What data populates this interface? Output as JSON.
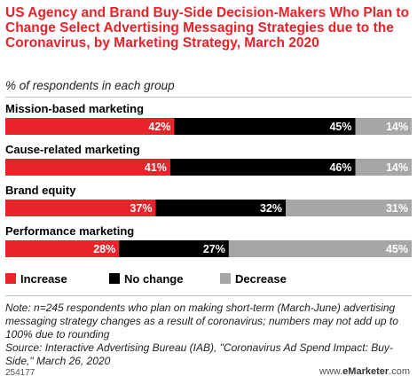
{
  "title": "US Agency and Brand Buy-Side Decision-Makers Who Plan to Change Select Advertising Messaging Strategies due to the Coronavirus, by Marketing Strategy, March 2020",
  "subtitle": "% of respondents in each group",
  "chart_data": {
    "type": "bar",
    "stacked": true,
    "orientation": "horizontal",
    "categories": [
      "Mission-based marketing",
      "Cause-related marketing",
      "Brand equity",
      "Performance marketing"
    ],
    "series": [
      {
        "name": "Increase",
        "color": "#e8232a",
        "values": [
          42,
          41,
          37,
          28
        ]
      },
      {
        "name": "No change",
        "color": "#000000",
        "values": [
          45,
          46,
          32,
          27
        ]
      },
      {
        "name": "Decrease",
        "color": "#a6a6a6",
        "values": [
          14,
          14,
          31,
          45
        ]
      }
    ],
    "value_suffix": "%",
    "legend_position": "bottom-left"
  },
  "footnote": "Note: n=245 respondents who plan on making short-term (March-June) advertising messaging strategy changes as a result of coronavirus; numbers may not add up to 100% due to rounding\nSource: Interactive Advertising Bureau (IAB), \"Coronavirus Ad Spend Impact: Buy-Side,\" March 26, 2020",
  "footer": {
    "id": "254177",
    "brand_prefix": "www.",
    "brand_name": "eMarketer",
    "brand_suffix": ".com"
  }
}
